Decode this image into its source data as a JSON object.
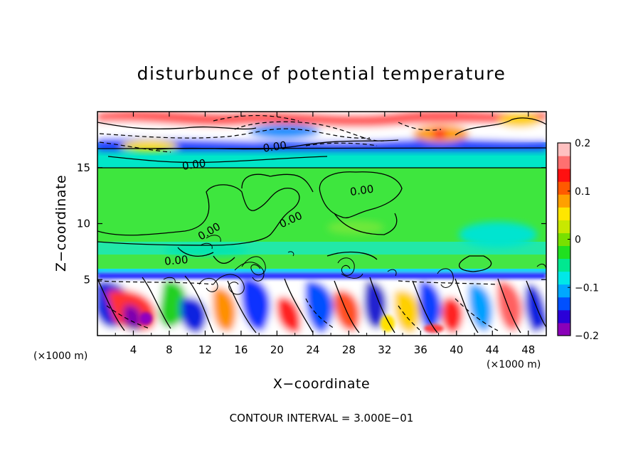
{
  "chart_data": {
    "type": "heatmap",
    "title": "disturbunce of potential temperature",
    "xlabel": "X−coordinate",
    "ylabel": "Z−coordinate",
    "x_unit_left": "(×1000 m)",
    "x_unit_right": "(×1000 m)",
    "xlim": [
      0,
      50
    ],
    "ylim": [
      0,
      20
    ],
    "x_ticks": [
      4,
      8,
      12,
      16,
      20,
      24,
      28,
      32,
      36,
      40,
      44,
      48
    ],
    "x_tick_labels": [
      "4",
      "8",
      "12",
      "16",
      "20",
      "24",
      "28",
      "32",
      "36",
      "40",
      "44",
      "48"
    ],
    "y_ticks": [
      5,
      10,
      15
    ],
    "y_tick_labels": [
      "5",
      "10",
      "15"
    ],
    "colorbar": {
      "range": [
        -0.2,
        0.2
      ],
      "ticks": [
        0.2,
        0.1,
        0,
        -0.1,
        -0.2
      ],
      "tick_labels": [
        "0.2",
        "0.1",
        "0",
        "−0.1",
        "−0.2"
      ],
      "colors": [
        "#8a00b8",
        "#2a00d8",
        "#0050ff",
        "#00a8ff",
        "#00e8e8",
        "#00e890",
        "#20e020",
        "#78e000",
        "#c8e800",
        "#ffe600",
        "#ffa000",
        "#ff5a00",
        "#ff1010",
        "#ff7070",
        "#ffc0c0"
      ]
    },
    "contour_labels": [
      {
        "text": "0.00",
        "x": 18.5,
        "z": 16.4
      },
      {
        "text": "0.00",
        "x": 9.5,
        "z": 14.8
      },
      {
        "text": "0.00",
        "x": 28.2,
        "z": 12.5
      },
      {
        "text": "0.00",
        "x": 20.5,
        "z": 9.6
      },
      {
        "text": "0.00",
        "x": 11.5,
        "z": 8.5
      },
      {
        "text": "0.00",
        "x": 7.5,
        "z": 6.3
      }
    ],
    "footer": "CONTOUR INTERVAL = 3.000E−01"
  }
}
